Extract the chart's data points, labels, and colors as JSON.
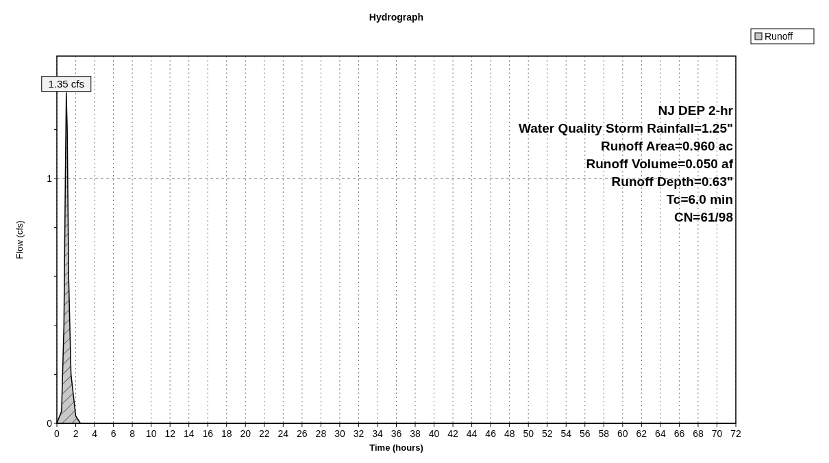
{
  "chart_data": {
    "type": "area",
    "title": "Hydrograph",
    "xlabel": "Time  (hours)",
    "ylabel": "Flow  (cfs)",
    "x": [
      0,
      0.5,
      0.75,
      0.9,
      1.0,
      1.1,
      1.25,
      1.5,
      2,
      2.5,
      72
    ],
    "series": [
      {
        "name": "Runoff",
        "color": "#c8c8c8",
        "values": [
          0,
          0.05,
          0.4,
          1.0,
          1.35,
          1.2,
          0.6,
          0.2,
          0.03,
          0,
          0
        ]
      }
    ],
    "xlim": [
      0,
      72
    ],
    "xticks": [
      0,
      2,
      4,
      6,
      8,
      10,
      12,
      14,
      16,
      18,
      20,
      22,
      24,
      26,
      28,
      30,
      32,
      34,
      36,
      38,
      40,
      42,
      44,
      46,
      48,
      50,
      52,
      54,
      56,
      58,
      60,
      62,
      64,
      66,
      68,
      70,
      72
    ],
    "ylim": [
      0,
      1.5
    ],
    "yticks": [
      0,
      {
        "value": 0.2,
        "label": null
      },
      {
        "value": 0.4,
        "label": null
      },
      {
        "value": 0.6,
        "label": null
      },
      {
        "value": 0.8,
        "label": null
      },
      1,
      {
        "value": 1.2,
        "label": null
      },
      {
        "value": 1.4,
        "label": null
      }
    ],
    "grid": true,
    "legend": "top right",
    "annotations": [
      {
        "text": "1.35 cfs",
        "x": 1.0,
        "y": 1.35
      },
      "NJ DEP 2-hr",
      "Water Quality Storm Rainfall=1.25\"",
      "Runoff Area=0.960 ac",
      "Runoff Volume=0.050 af",
      "Runoff Depth=0.63\"",
      "Tc=6.0 min",
      "CN=61/98"
    ]
  }
}
